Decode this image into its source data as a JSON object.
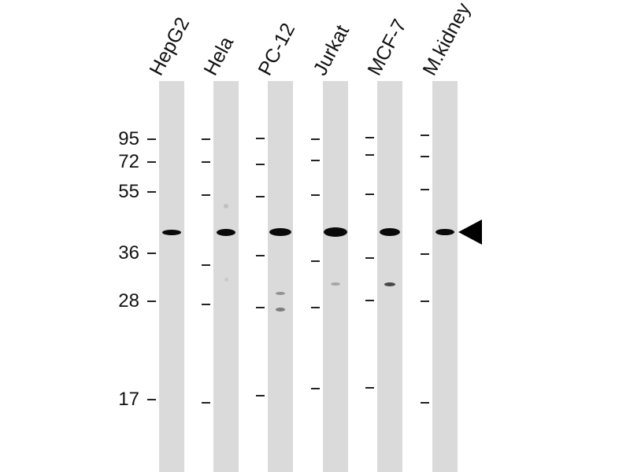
{
  "lanes": [
    {
      "label": "HepG2"
    },
    {
      "label": "Hela"
    },
    {
      "label": "PC-12"
    },
    {
      "label": "Jurkat"
    },
    {
      "label": "MCF-7"
    },
    {
      "label": "M.kidney"
    }
  ],
  "markers": [
    "95",
    "72",
    "55",
    "36",
    "28",
    "17"
  ],
  "arrow_icon": "left-pointing-triangle"
}
